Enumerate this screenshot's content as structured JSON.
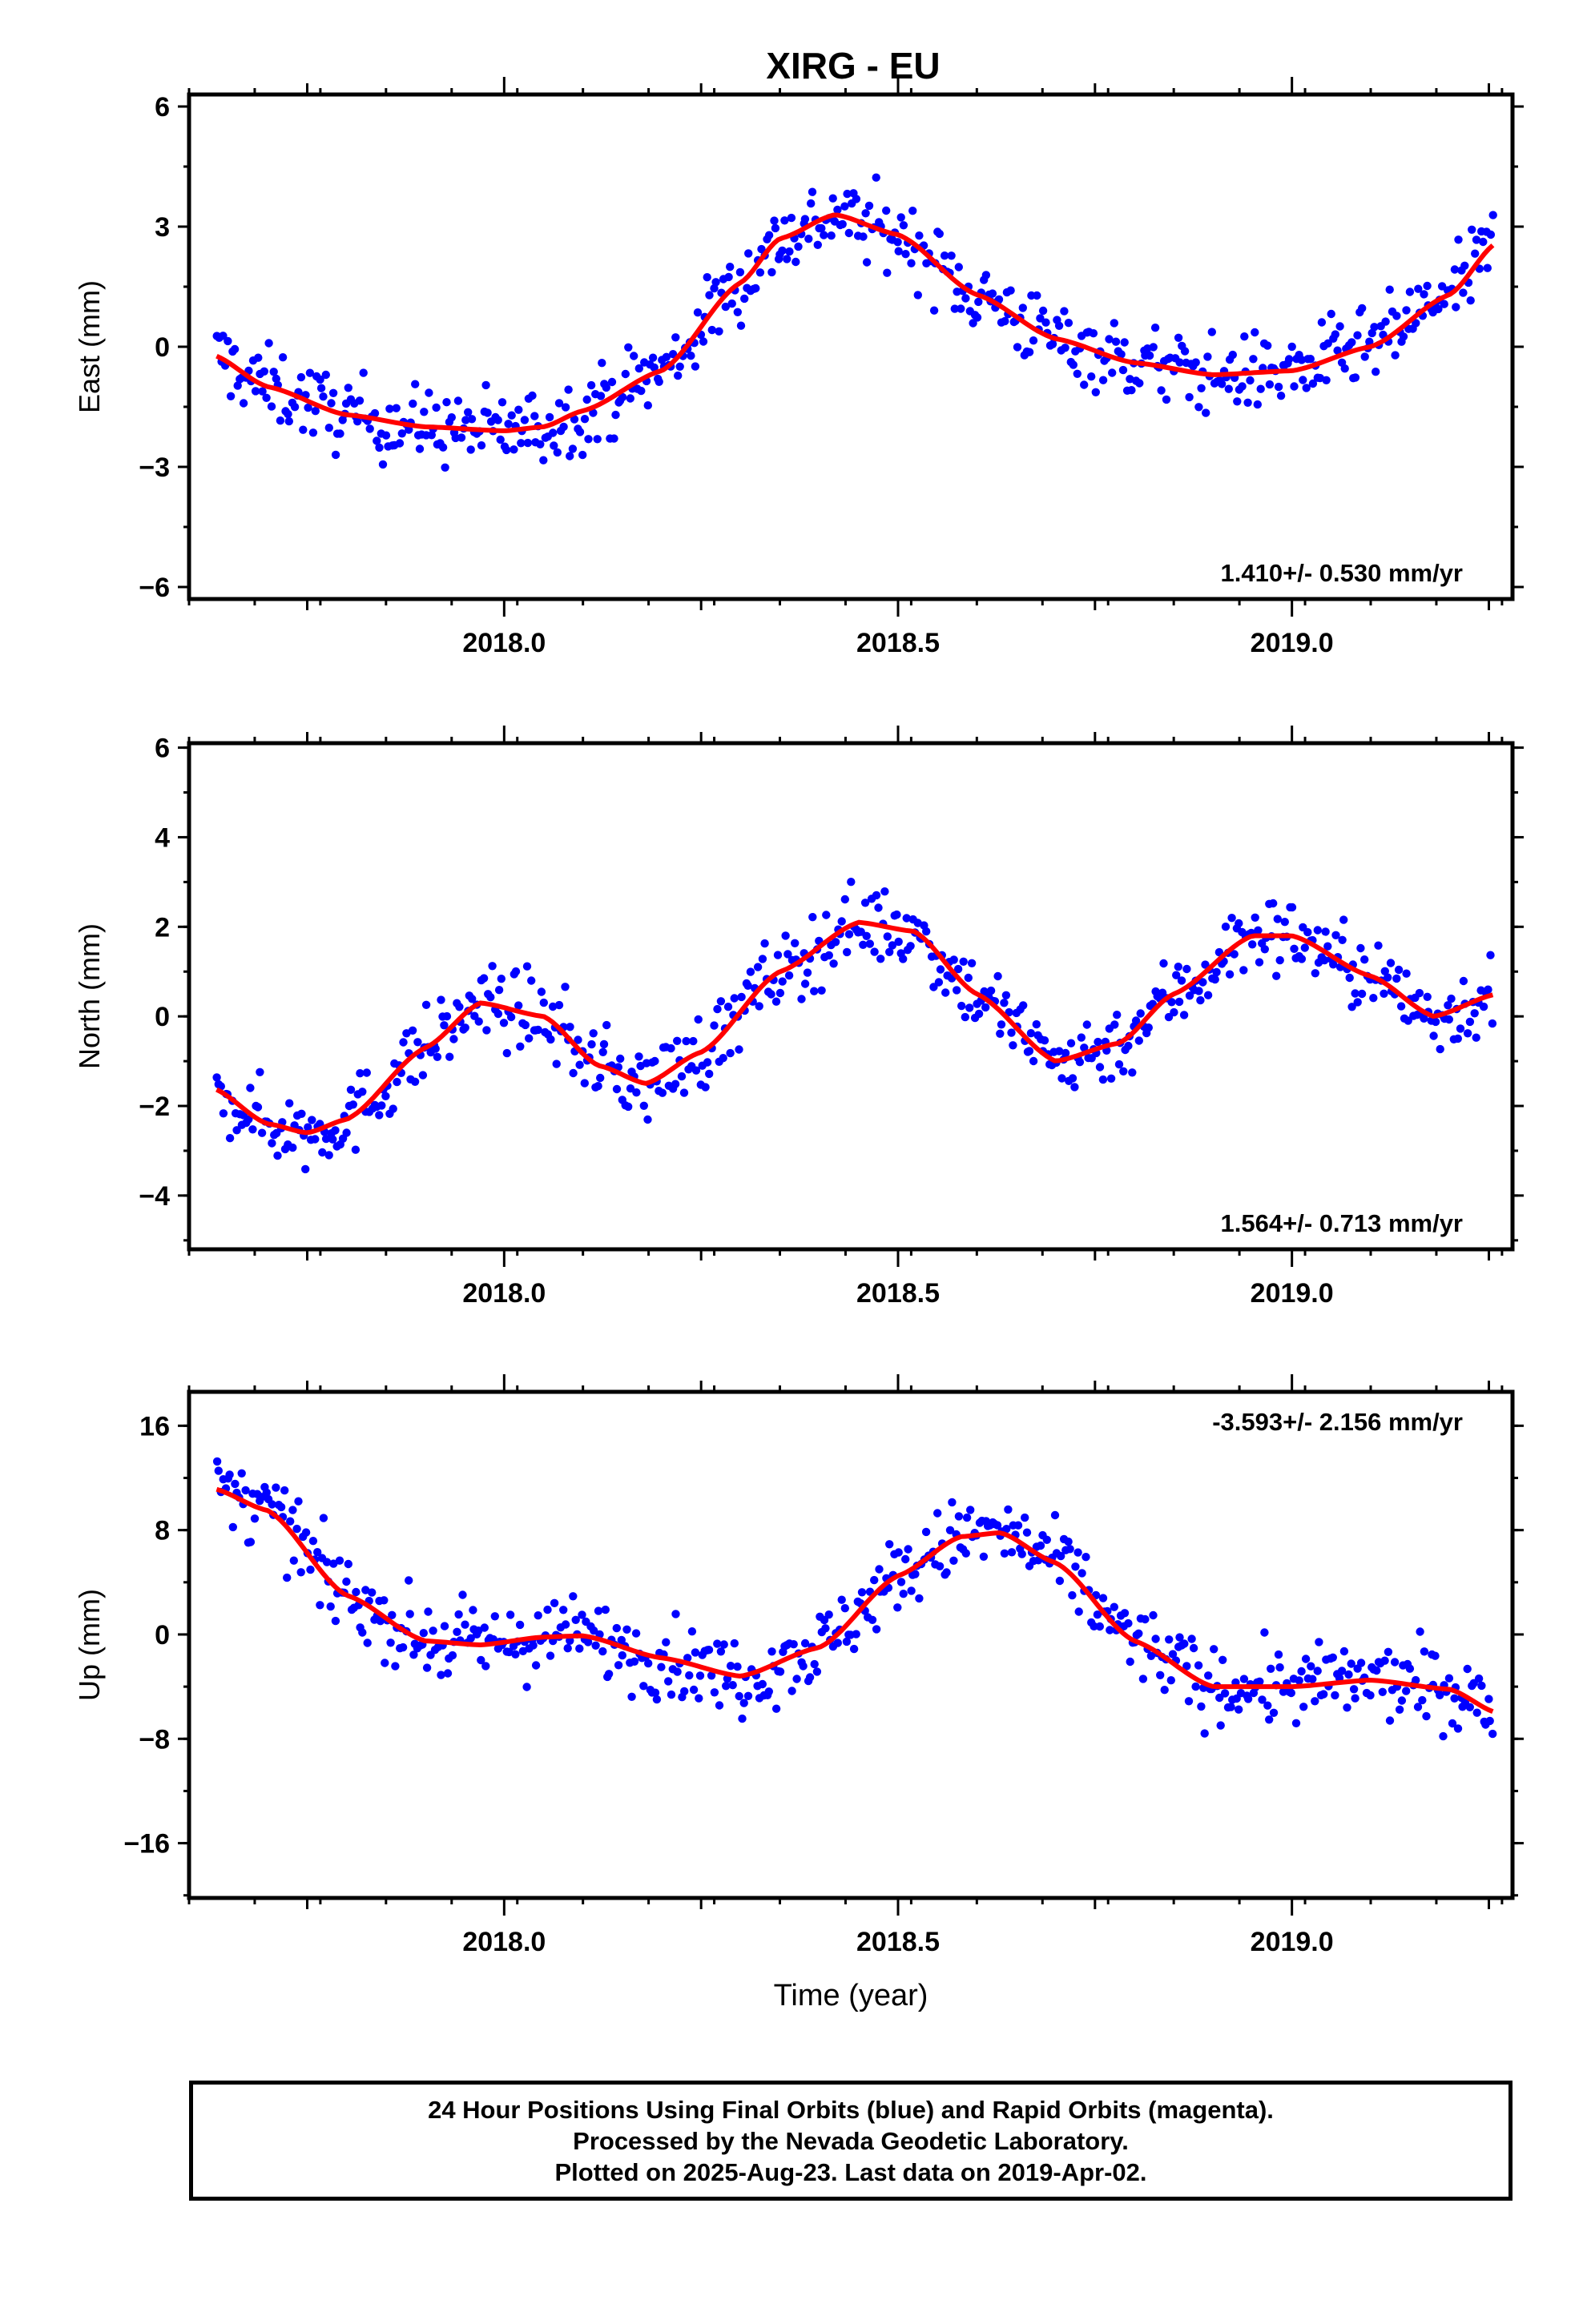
{
  "title": "XIRG - EU",
  "footer": {
    "lines": [
      "24 Hour Positions Using Final Orbits (blue) and Rapid Orbits (magenta).",
      "Processed by the Nevada Geodetic Laboratory.",
      "Plotted on 2025-Aug-23. Last data on 2019-Apr-02."
    ]
  },
  "colors": {
    "points": "#0000ff",
    "fit": "#ff0000",
    "frame": "#000000"
  },
  "chart_data": [
    {
      "type": "scatter",
      "name": "east",
      "ylabel": "East (mm)",
      "xlabel": "",
      "xlim": [
        2017.6,
        2019.28
      ],
      "ylim": [
        -6.3,
        6.3
      ],
      "yticks": [
        -6,
        -3,
        0,
        3,
        6
      ],
      "xticks": [
        "2018.0",
        "2018.5",
        "2019.0"
      ],
      "rate_label": "1.410+/- 0.530 mm/yr",
      "rate_position": "bottom-right",
      "fit_x": [
        2017.63,
        2017.7,
        2017.8,
        2017.9,
        2018.0,
        2018.05,
        2018.1,
        2018.2,
        2018.3,
        2018.35,
        2018.42,
        2018.5,
        2018.6,
        2018.7,
        2018.8,
        2018.9,
        2019.0,
        2019.1,
        2019.2,
        2019.26
      ],
      "fit_y": [
        -0.2,
        -1.0,
        -1.7,
        -2.0,
        -2.1,
        -2.0,
        -1.6,
        -0.6,
        1.6,
        2.7,
        3.3,
        2.8,
        1.3,
        0.2,
        -0.4,
        -0.7,
        -0.6,
        0.0,
        1.3,
        2.6
      ]
    },
    {
      "type": "scatter",
      "name": "north",
      "ylabel": "North (mm)",
      "xlabel": "",
      "xlim": [
        2017.6,
        2019.28
      ],
      "ylim": [
        -5.2,
        6.1
      ],
      "yticks": [
        -4,
        -2,
        0,
        2,
        4,
        6
      ],
      "xticks": [
        "2018.0",
        "2018.5",
        "2019.0"
      ],
      "rate_label": "1.564+/- 0.713 mm/yr",
      "rate_position": "bottom-right",
      "fit_x": [
        2017.63,
        2017.7,
        2017.75,
        2017.8,
        2017.9,
        2017.97,
        2018.05,
        2018.12,
        2018.18,
        2018.25,
        2018.35,
        2018.45,
        2018.52,
        2018.6,
        2018.7,
        2018.78,
        2018.85,
        2018.95,
        2019.0,
        2019.1,
        2019.18,
        2019.26
      ],
      "fit_y": [
        -1.6,
        -2.4,
        -2.6,
        -2.3,
        -0.7,
        0.3,
        0.0,
        -1.1,
        -1.5,
        -0.8,
        1.0,
        2.1,
        1.9,
        0.5,
        -1.0,
        -0.6,
        0.5,
        1.8,
        1.8,
        0.9,
        0.0,
        0.5
      ]
    },
    {
      "type": "scatter",
      "name": "up",
      "ylabel": "Up (mm)",
      "xlabel": "Time (year)",
      "xlim": [
        2017.6,
        2019.28
      ],
      "ylim": [
        -20.2,
        18.6
      ],
      "yticks": [
        -16,
        -8,
        0,
        8,
        16
      ],
      "xticks": [
        "2018.0",
        "2018.5",
        "2019.0"
      ],
      "rate_label": "-3.593+/- 2.156 mm/yr",
      "rate_position": "top-right",
      "fit_x": [
        2017.63,
        2017.7,
        2017.8,
        2017.9,
        2017.97,
        2018.05,
        2018.1,
        2018.2,
        2018.3,
        2018.4,
        2018.5,
        2018.58,
        2018.63,
        2018.7,
        2018.8,
        2018.9,
        2019.0,
        2019.1,
        2019.2,
        2019.26
      ],
      "fit_y": [
        11.2,
        9.5,
        3.0,
        -0.5,
        -0.8,
        -0.2,
        -0.1,
        -1.8,
        -3.2,
        -1.0,
        4.5,
        7.5,
        7.8,
        5.5,
        -0.5,
        -4.0,
        -4.0,
        -3.5,
        -4.2,
        -6.0
      ]
    }
  ]
}
